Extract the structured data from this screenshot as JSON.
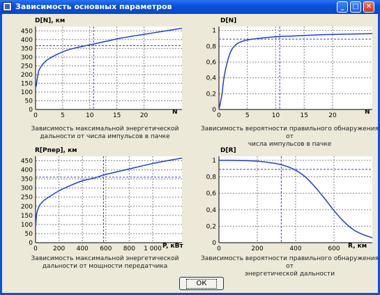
{
  "window": {
    "title": "Зависимость основных параметров",
    "ok_label": "ОК"
  },
  "charts": [
    {
      "id": "c1",
      "ylabel": "D[N], км",
      "xname": "N",
      "caption_1": "Зависимость максимальной энергетической",
      "caption_2": "дальности от числа импульсов в пачке"
    },
    {
      "id": "c2",
      "ylabel": "D[N]",
      "xname": "N",
      "caption_1": "Зависимость вероятности правильного обнаружения от",
      "caption_2": "числа импульсов в пачке"
    },
    {
      "id": "c3",
      "ylabel": "R[Pпер], км",
      "xname": "P, кВт",
      "caption_1": "Зависимость максимальной энергетической",
      "caption_2": "дальности от мощности передатчика"
    },
    {
      "id": "c4",
      "ylabel": "D[R]",
      "xname": "R, км",
      "caption_1": "Зависимость вероятности правильного обнаружения от",
      "caption_2": "энергетической дальности"
    }
  ],
  "chart_data": [
    {
      "type": "line",
      "xlabel": "N",
      "ylabel": "D[N], км",
      "xlim": [
        0,
        27
      ],
      "ylim": [
        0,
        475
      ],
      "xticks": [
        0,
        5,
        10,
        15,
        20
      ],
      "xtick_labels": [
        "0",
        "5",
        "10",
        "15",
        "20"
      ],
      "yticks": [
        0,
        50,
        100,
        150,
        200,
        250,
        300,
        350,
        400,
        450
      ],
      "x": [
        0.1,
        0.5,
        1,
        2,
        3,
        5,
        7,
        10,
        13,
        16,
        20,
        24,
        27
      ],
      "y": [
        130,
        210,
        245,
        280,
        300,
        330,
        350,
        370,
        390,
        410,
        430,
        450,
        465
      ],
      "marker": {
        "x": 10.7,
        "y": 365
      }
    },
    {
      "type": "line",
      "xlabel": "N",
      "ylabel": "D[N]",
      "xlim": [
        0,
        27
      ],
      "ylim": [
        0,
        1.05
      ],
      "xticks": [
        0,
        5,
        10,
        15,
        20
      ],
      "xtick_labels": [
        "0",
        "5",
        "10",
        "15",
        "20"
      ],
      "yticks": [
        0,
        0.2,
        0.4,
        0.6,
        0.8,
        1
      ],
      "ytick_labels": [
        "0",
        "0,2",
        "0,4",
        "0,6",
        "0,8",
        "1"
      ],
      "x": [
        0,
        0.5,
        1,
        2,
        3,
        4,
        5,
        7,
        10,
        13,
        16,
        20,
        24,
        27
      ],
      "y": [
        0,
        0.18,
        0.45,
        0.72,
        0.82,
        0.86,
        0.88,
        0.9,
        0.92,
        0.93,
        0.94,
        0.95,
        0.955,
        0.96
      ],
      "marker": {
        "x": 10.7,
        "y": 0.89
      }
    },
    {
      "type": "line",
      "xlabel": "P, кВт",
      "ylabel": "R[Pпер], км",
      "xlim": [
        0,
        1250
      ],
      "ylim": [
        0,
        475
      ],
      "xticks": [
        0,
        200,
        400,
        600,
        800,
        1000
      ],
      "xtick_labels": [
        "0",
        "200",
        "400",
        "600",
        "800",
        "1 000"
      ],
      "yticks": [
        0,
        50,
        100,
        150,
        200,
        250,
        300,
        350,
        400,
        450
      ],
      "x": [
        1,
        10,
        30,
        60,
        100,
        200,
        300,
        400,
        500,
        600,
        800,
        1000,
        1250
      ],
      "y": [
        90,
        160,
        200,
        225,
        245,
        285,
        315,
        340,
        355,
        375,
        405,
        435,
        465
      ],
      "marker": {
        "x": 580,
        "y": 360
      }
    },
    {
      "type": "line",
      "xlabel": "R, км",
      "ylabel": "D[R]",
      "xlim": [
        0,
        800
      ],
      "ylim": [
        0,
        1.05
      ],
      "xticks": [
        0,
        200,
        400,
        600
      ],
      "xtick_labels": [
        "0",
        "200",
        "400",
        "600"
      ],
      "yticks": [
        0,
        0.2,
        0.4,
        0.6,
        0.8,
        1
      ],
      "ytick_labels": [
        "0",
        "0,2",
        "0,4",
        "0,6",
        "0,8",
        "1"
      ],
      "x": [
        0,
        100,
        200,
        300,
        350,
        400,
        450,
        500,
        550,
        600,
        650,
        700,
        750,
        800
      ],
      "y": [
        1,
        0.998,
        0.99,
        0.96,
        0.93,
        0.88,
        0.8,
        0.68,
        0.54,
        0.39,
        0.26,
        0.16,
        0.1,
        0.06
      ],
      "marker": {
        "x": 325,
        "y": 0.89
      }
    }
  ],
  "colors": {
    "curve": "#1f3bd9",
    "marker": "#3040d0",
    "grid": "#808080",
    "title_bar": "#0a52d9"
  },
  "icons": {
    "minimize": "minimize-icon",
    "maximize": "maximize-icon",
    "close": "close-icon",
    "app": "app-icon"
  }
}
